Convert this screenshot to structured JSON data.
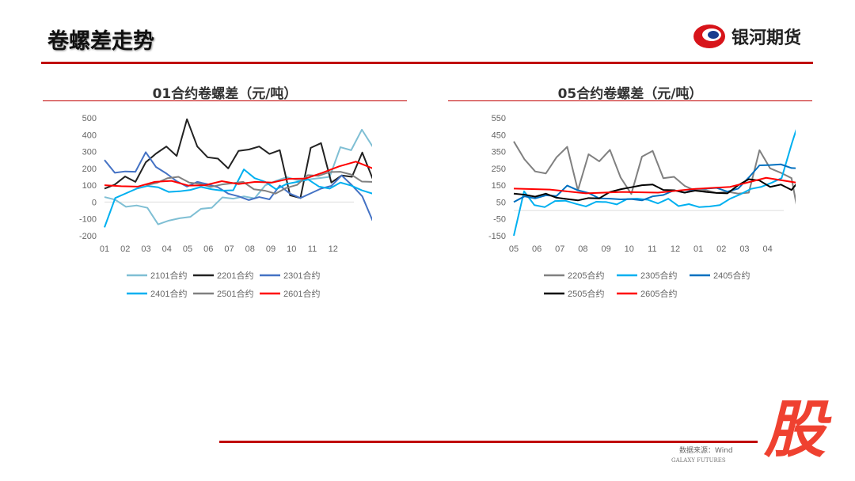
{
  "header": {
    "title": "卷螺差走势",
    "logo_text": "银河期货"
  },
  "footer": {
    "source": "数据来源：Wind",
    "source_en": "GALAXY FUTURES",
    "overlay_char": "股"
  },
  "chart_data": [
    {
      "type": "line",
      "title": "01合约卷螺差（元/吨）",
      "ylim": [
        -200,
        500
      ],
      "yticks": [
        500,
        400,
        300,
        200,
        100,
        0,
        -100,
        -200
      ],
      "xticks": [
        "01",
        "02",
        "03",
        "04",
        "05",
        "06",
        "07",
        "08",
        "09",
        "10",
        "11",
        "12"
      ],
      "grid": false,
      "legend": "bottom",
      "series": [
        {
          "name": "2101合约",
          "color": "#7fbfd4",
          "x0": 0,
          "values": [
            30,
            10,
            -20,
            -20,
            -30,
            -140,
            -110,
            -100,
            -80,
            -40,
            -30,
            20,
            20,
            30,
            30,
            100,
            130,
            140,
            130,
            130,
            150,
            150,
            330,
            300,
            430,
            330
          ]
        },
        {
          "name": "2201合约",
          "color": "#222222",
          "x0": 0,
          "values": [
            80,
            100,
            160,
            120,
            240,
            280,
            330,
            270,
            500,
            330,
            270,
            250,
            200,
            300,
            320,
            330,
            290,
            300,
            40,
            20,
            330,
            350,
            120,
            150,
            150,
            290,
            140
          ]
        },
        {
          "name": "2301合约",
          "color": "#4472c4",
          "x0": 0,
          "values": [
            250,
            170,
            190,
            180,
            300,
            200,
            170,
            120,
            100,
            120,
            110,
            80,
            50,
            30,
            20,
            30,
            20,
            90,
            50,
            20,
            60,
            80,
            100,
            150,
            100,
            30,
            -110
          ]
        },
        {
          "name": "2401合约",
          "color": "#00b0f0",
          "x0": 0,
          "values": [
            -150,
            20,
            60,
            80,
            100,
            80,
            60,
            60,
            80,
            90,
            80,
            60,
            70,
            190,
            150,
            120,
            80,
            100,
            120,
            130,
            100,
            80,
            120,
            90,
            70,
            50
          ]
        },
        {
          "name": "2501合约",
          "color": "#808080",
          "x0": 2,
          "values": [
            100,
            110,
            150,
            150,
            120,
            100,
            90,
            100,
            120,
            120,
            80,
            60,
            50,
            80,
            110,
            160,
            160,
            170,
            180,
            160,
            130,
            120
          ]
        },
        {
          "name": "2601合约",
          "color": "#ff0000",
          "x0": 0,
          "values": [
            100,
            90,
            100,
            120,
            130,
            90,
            100,
            120,
            115,
            120,
            120,
            130,
            140,
            170,
            220,
            240,
            200
          ]
        }
      ]
    },
    {
      "type": "line",
      "title": "05合约卷螺差（元/吨）",
      "ylim": [
        -150,
        600
      ],
      "yticks": [
        550,
        450,
        350,
        250,
        150,
        50,
        -50,
        -150
      ],
      "xticks": [
        "05",
        "06",
        "07",
        "08",
        "09",
        "10",
        "11",
        "12",
        "01",
        "02",
        "03",
        "04"
      ],
      "grid": false,
      "legend": "bottom",
      "series": [
        {
          "name": "2205合约",
          "color": "#808080",
          "x0": 0,
          "values": [
            410,
            300,
            240,
            220,
            320,
            370,
            120,
            330,
            300,
            360,
            200,
            90,
            320,
            350,
            200,
            200,
            150,
            110,
            120,
            100,
            120,
            100,
            110,
            350,
            250,
            220,
            200,
            -150
          ]
        },
        {
          "name": "2305合约",
          "color": "#00b0f0",
          "x0": 0,
          "values": [
            -150,
            110,
            40,
            20,
            60,
            50,
            40,
            20,
            60,
            50,
            40,
            60,
            70,
            60,
            50,
            70,
            30,
            30,
            20,
            20,
            40,
            70,
            100,
            120,
            140,
            160,
            200,
            400,
            590
          ]
        },
        {
          "name": "2405合约",
          "color": "#0070c0",
          "x0": 0,
          "values": [
            50,
            80,
            80,
            90,
            90,
            140,
            120,
            100,
            80,
            70,
            70,
            60,
            60,
            80,
            100,
            120,
            110,
            120,
            130,
            130,
            120,
            130,
            200,
            260,
            270,
            270,
            260,
            250
          ]
        },
        {
          "name": "2505合约",
          "color": "#000000",
          "x0": 0,
          "values": [
            100,
            90,
            90,
            100,
            80,
            60,
            60,
            70,
            80,
            110,
            130,
            130,
            150,
            150,
            130,
            120,
            110,
            110,
            110,
            100,
            110,
            150,
            190,
            170,
            140,
            150,
            130,
            200
          ]
        },
        {
          "name": "2605合约",
          "color": "#ff0000",
          "x0": 0,
          "values": [
            130,
            120,
            110,
            110,
            110,
            120,
            140,
            190,
            160
          ]
        }
      ]
    }
  ]
}
